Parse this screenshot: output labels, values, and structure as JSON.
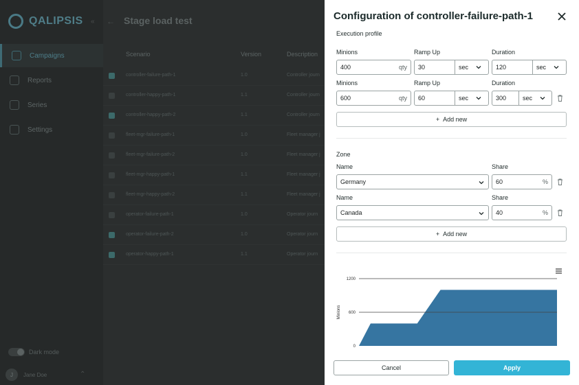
{
  "app": {
    "logo": "QALIPSIS",
    "page_title": "Stage load test",
    "nav": [
      "Campaigns",
      "Reports",
      "Series",
      "Settings"
    ],
    "dark_mode_label": "Dark mode",
    "user": {
      "initial": "J",
      "name": "Jane Doe"
    },
    "table": {
      "headers": [
        "Scenario",
        "Version",
        "Description"
      ],
      "rows": [
        {
          "checked": true,
          "scenario": "controller-failure-path-1",
          "version": "1.0",
          "desc": "Controller journ"
        },
        {
          "checked": false,
          "scenario": "controller-happy-path-1",
          "version": "1.1",
          "desc": "Controller journ"
        },
        {
          "checked": true,
          "scenario": "controller-happy-path-2",
          "version": "1.1",
          "desc": "Controller journ"
        },
        {
          "checked": false,
          "scenario": "fleet-mgr-failure-path-1",
          "version": "1.0",
          "desc": "Fleet manager j"
        },
        {
          "checked": false,
          "scenario": "fleet-mgr-failure-path-2",
          "version": "1.0",
          "desc": "Fleet manager j"
        },
        {
          "checked": false,
          "scenario": "fleet-mgr-happy-path-1",
          "version": "1.1",
          "desc": "Fleet manager j"
        },
        {
          "checked": false,
          "scenario": "fleet-mgr-happy-path-2",
          "version": "1.1",
          "desc": "Fleet manager j"
        },
        {
          "checked": false,
          "scenario": "operator-failure-path-1",
          "version": "1.0",
          "desc": "Operator journ"
        },
        {
          "checked": true,
          "scenario": "operator-failure-path-2",
          "version": "1.0",
          "desc": "Operator journ"
        },
        {
          "checked": true,
          "scenario": "operator-happy-path-1",
          "version": "1.1",
          "desc": "Operator journ"
        }
      ]
    }
  },
  "panel": {
    "title": "Configuration of controller-failure-path-1",
    "execution_profile_label": "Execution profile",
    "stages": [
      {
        "minions_label": "Minions",
        "minions": "400",
        "minions_suffix": "qty",
        "rampup_label": "Ramp Up",
        "rampup": "30",
        "rampup_unit": "sec",
        "duration_label": "Duration",
        "duration": "120",
        "duration_unit": "sec"
      },
      {
        "minions_label": "Minions",
        "minions": "600",
        "minions_suffix": "qty",
        "rampup_label": "Ramp Up",
        "rampup": "60",
        "rampup_unit": "sec",
        "duration_label": "Duration",
        "duration": "300",
        "duration_unit": "sec"
      }
    ],
    "add_new_label": "Add new",
    "zone_label": "Zone",
    "zones": [
      {
        "name_label": "Name",
        "name": "Germany",
        "share_label": "Share",
        "share": "60",
        "share_suffix": "%"
      },
      {
        "name_label": "Name",
        "name": "Canada",
        "share_label": "Share",
        "share": "40",
        "share_suffix": "%"
      }
    ],
    "cancel_label": "Cancel",
    "apply_label": "Apply"
  },
  "chart_data": {
    "type": "area",
    "ylabel": "Minions",
    "yticks": [
      0,
      600,
      1200
    ],
    "ylim": [
      0,
      1200
    ],
    "x": [
      0,
      30,
      150,
      210,
      510
    ],
    "values": [
      0,
      400,
      400,
      1000,
      1000
    ],
    "color": "#2b6e9c"
  },
  "colors": {
    "accent": "#33b4d6"
  }
}
